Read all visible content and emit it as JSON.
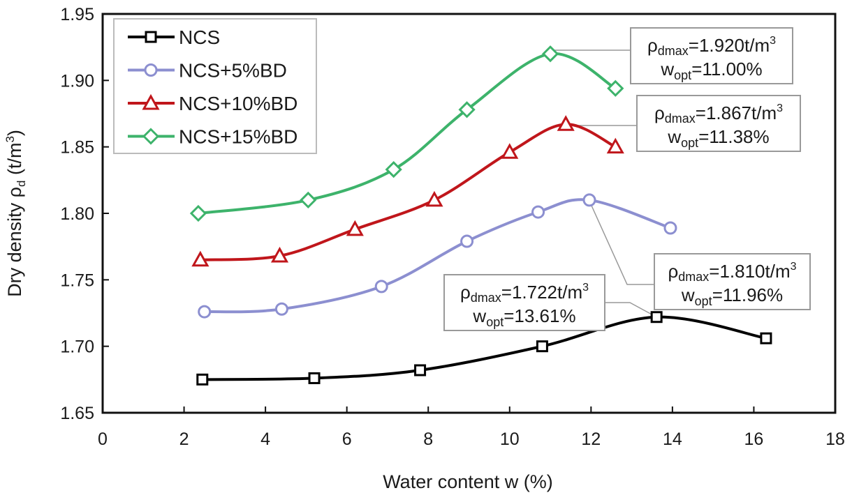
{
  "chart_data": {
    "type": "line",
    "title": "",
    "xlabel": "Water content w (%)",
    "ylabel_parts": {
      "main": "Dry density ρ",
      "sub": "d",
      "unit_pre": " (t/m",
      "unit_sup": "3",
      "unit_post": ")"
    },
    "xlim": [
      0,
      18
    ],
    "ylim": [
      1.65,
      1.95
    ],
    "xticks": [
      "0",
      "2",
      "4",
      "6",
      "8",
      "10",
      "12",
      "14",
      "16",
      "18"
    ],
    "yticks": [
      "1.65",
      "1.70",
      "1.75",
      "1.80",
      "1.85",
      "1.90",
      "1.95"
    ],
    "grid": false,
    "smoothed": true,
    "legend_position": "top-left",
    "series": [
      {
        "name": "NCS",
        "color": "#000000",
        "marker": "square",
        "x": [
          2.45,
          5.2,
          7.8,
          10.8,
          13.61,
          16.3
        ],
        "y": [
          1.675,
          1.676,
          1.682,
          1.7,
          1.722,
          1.706
        ]
      },
      {
        "name": "NCS+5%BD",
        "color": "#8c8fd0",
        "marker": "circle",
        "x": [
          2.5,
          4.4,
          6.85,
          8.95,
          10.7,
          11.96,
          13.95
        ],
        "y": [
          1.726,
          1.728,
          1.745,
          1.779,
          1.801,
          1.81,
          1.789
        ]
      },
      {
        "name": "NCS+10%BD",
        "color": "#c0161b",
        "marker": "triangle",
        "x": [
          2.4,
          4.35,
          6.2,
          8.15,
          10.0,
          11.38,
          12.6
        ],
        "y": [
          1.765,
          1.768,
          1.788,
          1.81,
          1.846,
          1.867,
          1.85
        ]
      },
      {
        "name": "NCS+15%BD",
        "color": "#3db36b",
        "marker": "diamond",
        "x": [
          2.35,
          5.05,
          7.15,
          8.95,
          11.0,
          12.6
        ],
        "y": [
          1.8,
          1.81,
          1.833,
          1.878,
          1.92,
          1.894
        ]
      }
    ],
    "annotations": [
      {
        "series": "NCS+15%BD",
        "rho_label": "ρ",
        "rho_sub": "dmax",
        "rho_value": "=1.920t/m",
        "rho_sup": "3",
        "w_label": "w",
        "w_sub": "opt",
        "w_value": "=11.00%"
      },
      {
        "series": "NCS+10%BD",
        "rho_label": "ρ",
        "rho_sub": "dmax",
        "rho_value": "=1.867t/m",
        "rho_sup": "3",
        "w_label": "w",
        "w_sub": "opt",
        "w_value": "=11.38%"
      },
      {
        "series": "NCS+5%BD",
        "rho_label": "ρ",
        "rho_sub": "dmax",
        "rho_value": "=1.810t/m",
        "rho_sup": "3",
        "w_label": "w",
        "w_sub": "opt",
        "w_value": "=11.96%"
      },
      {
        "series": "NCS",
        "rho_label": "ρ",
        "rho_sub": "dmax",
        "rho_value": "=1.722t/m",
        "rho_sup": "3",
        "w_label": "w",
        "w_sub": "opt",
        "w_value": "=13.61%"
      }
    ]
  }
}
